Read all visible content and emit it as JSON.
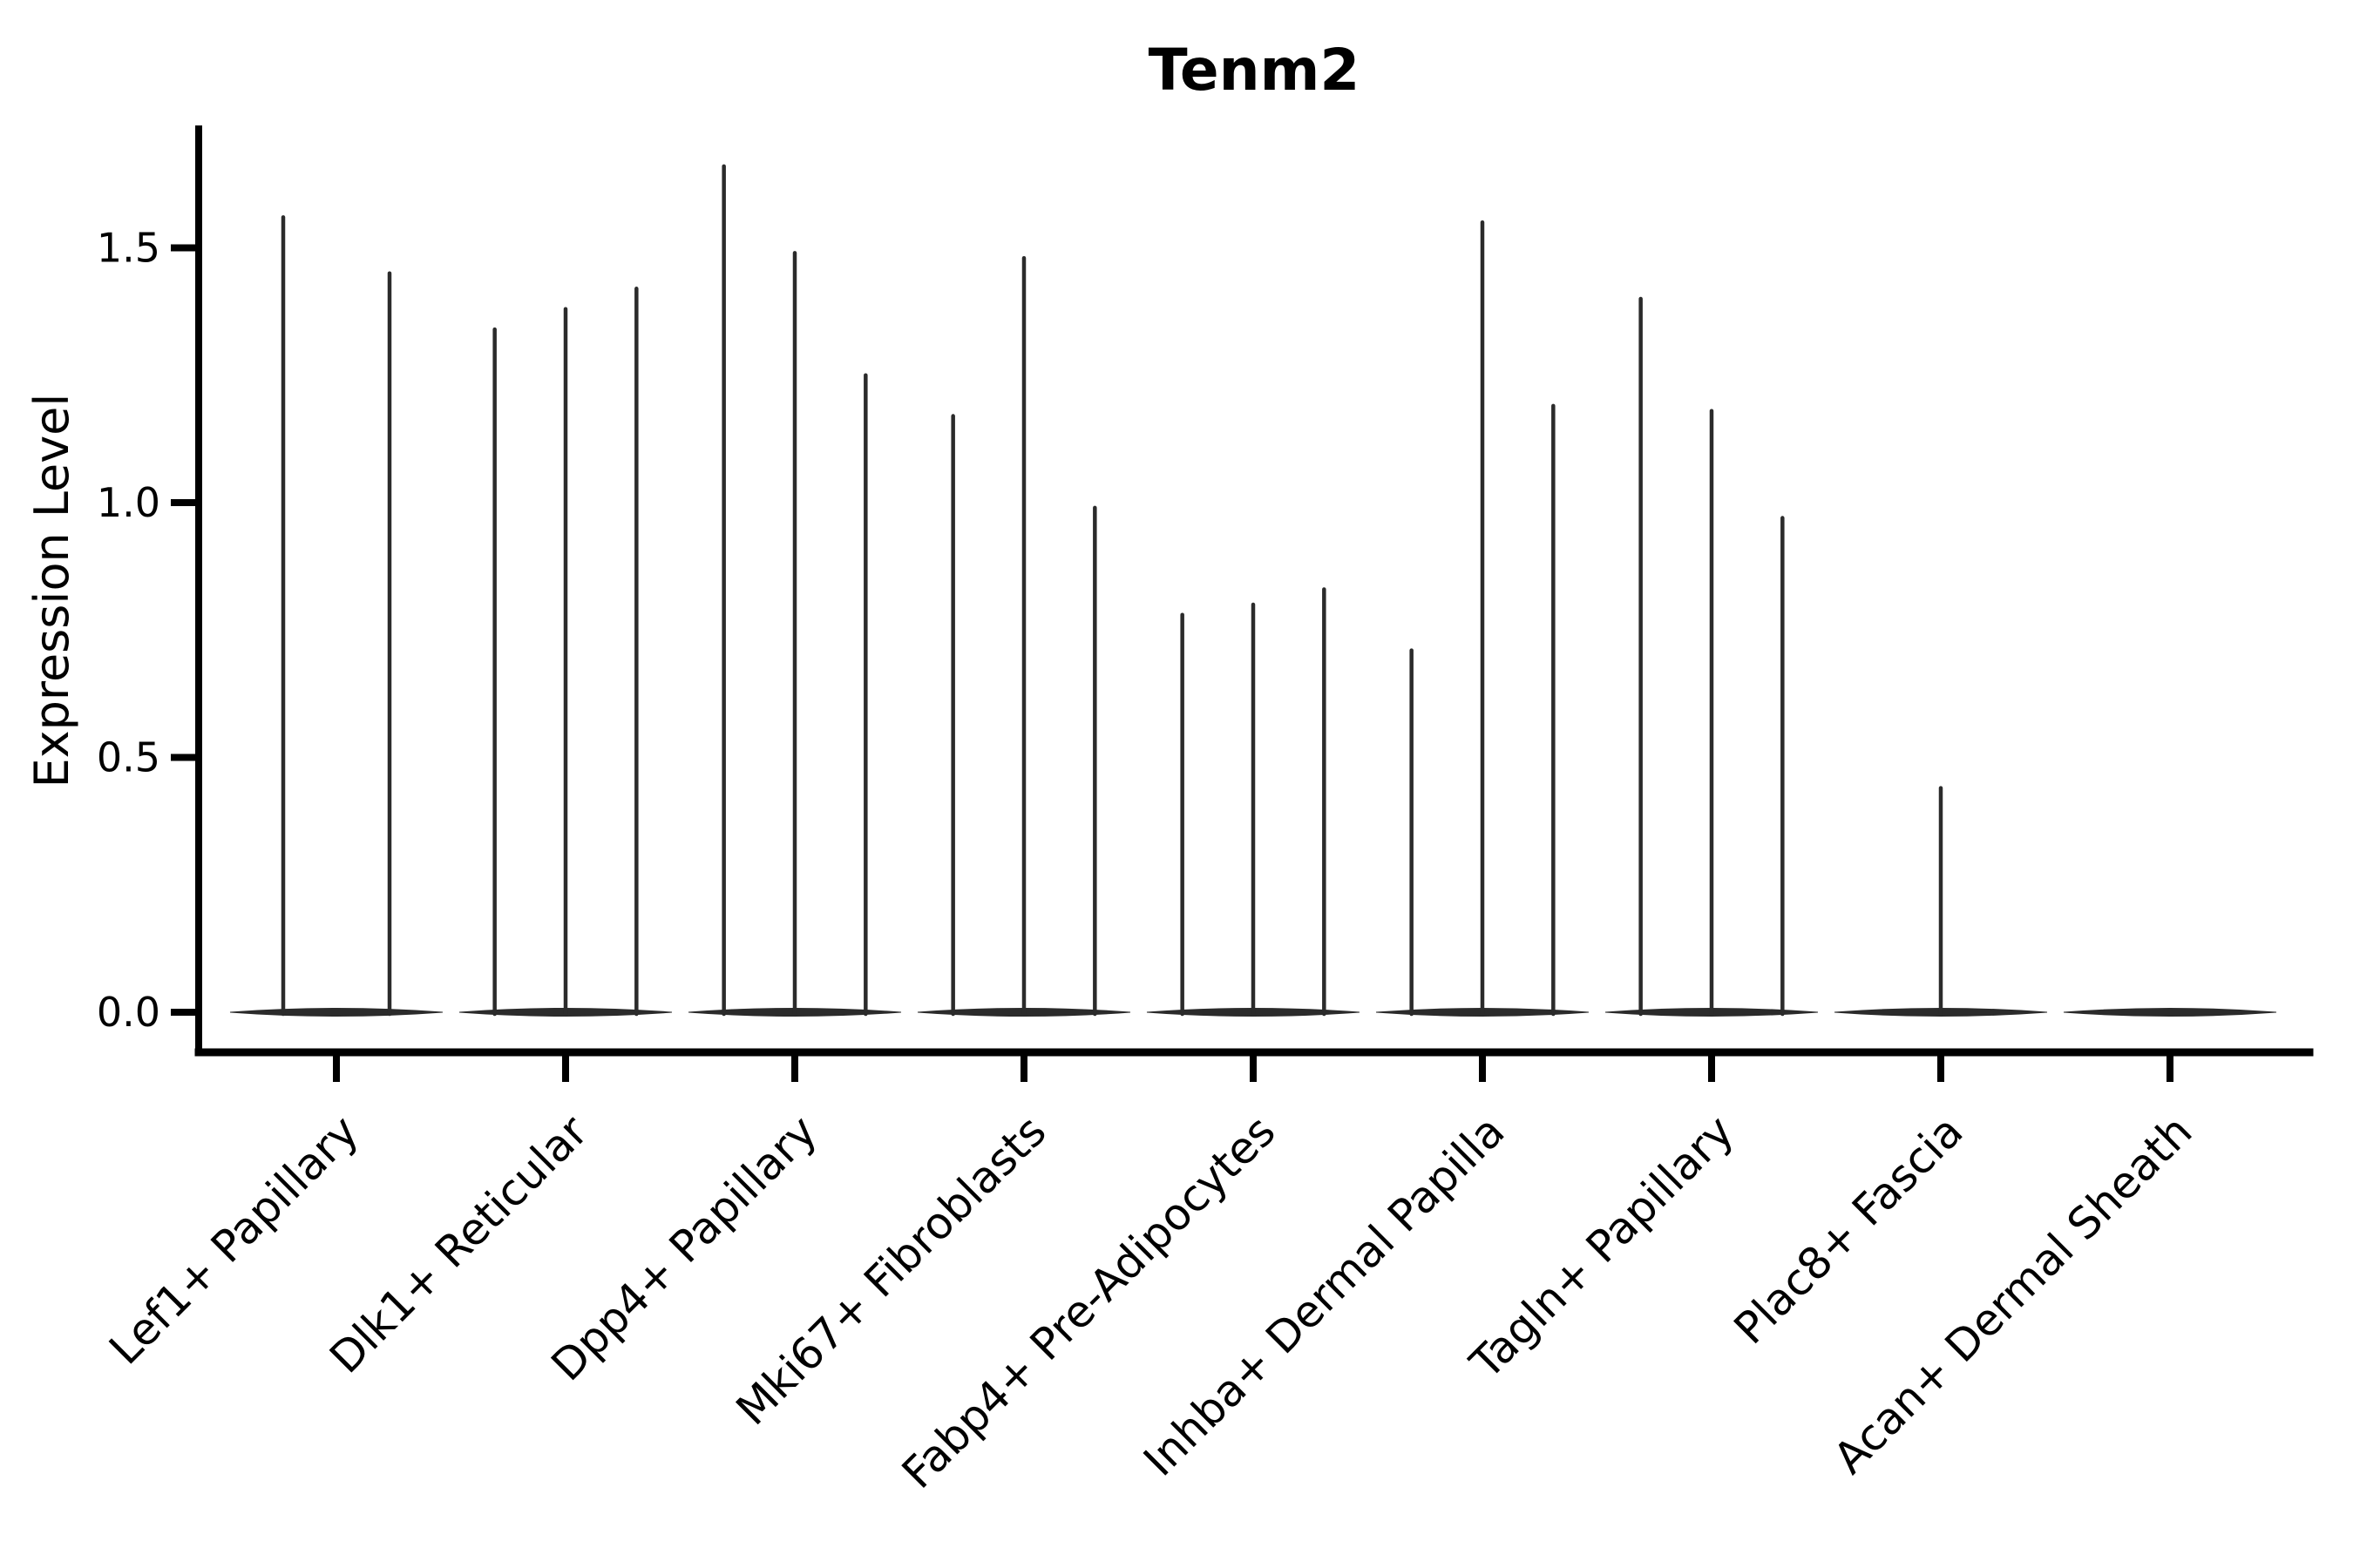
{
  "title": "Tenm2",
  "y_axis": {
    "label": "Expression Level",
    "tick_labels": [
      "0.0",
      "0.5",
      "1.0",
      "1.5"
    ],
    "tick_values": [
      0.0,
      0.5,
      1.0,
      1.5
    ]
  },
  "chart_data": {
    "type": "violin",
    "title": "Tenm2",
    "xlabel": "",
    "ylabel": "Expression Level",
    "ylim": [
      -0.08,
      1.73
    ],
    "yticks": [
      0.0,
      0.5,
      1.0,
      1.5
    ],
    "ytick_labels": [
      "0.0",
      "0.5",
      "1.0",
      "1.5"
    ],
    "grid": false,
    "legend_position": "none",
    "categories": [
      "Lef1+ Papillary",
      "Dlk1+ Reticular",
      "Dpp4+ Papillary",
      "Mki67+ Fibroblasts",
      "Fabp4+ Pre-Adipocytes",
      "Inhba+ Dermal Papilla",
      "Tagln+ Papillary",
      "Plac8+ Fascia",
      "Acan+ Dermal Sheath"
    ],
    "violin_description": "Each category shows 1-3 thin violins: density mass concentrated at expression 0 (flat lens at baseline) with a narrow spike reaching the listed maximum expression value.",
    "violin_max_per_category": [
      [
        1.56,
        1.45
      ],
      [
        1.34,
        1.38,
        1.42
      ],
      [
        1.66,
        1.49,
        1.25
      ],
      [
        1.17,
        1.48,
        0.99
      ],
      [
        0.78,
        0.8,
        0.83
      ],
      [
        0.71,
        1.55,
        1.19
      ],
      [
        1.4,
        1.18,
        0.97
      ],
      [
        0.44
      ],
      []
    ],
    "colors": {
      "violin": "#2b2b2b",
      "axis": "#000000",
      "text": "#000000",
      "background": "#ffffff"
    }
  }
}
